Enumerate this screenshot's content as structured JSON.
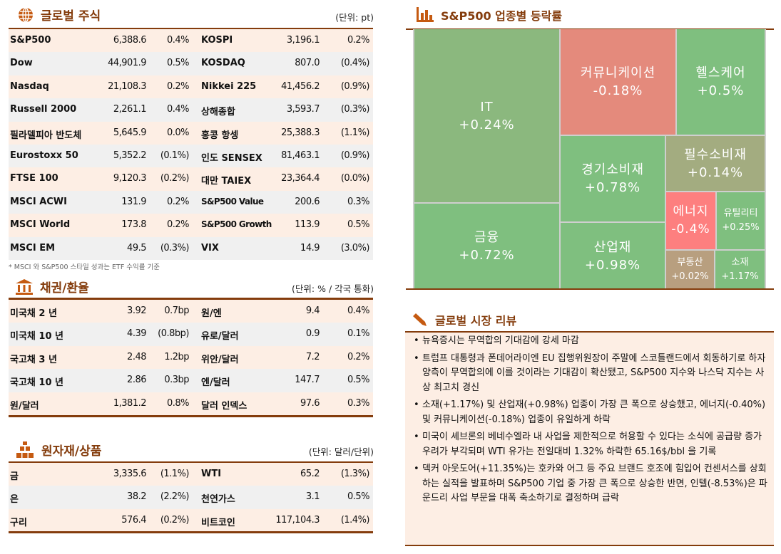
{
  "global_stocks": {
    "title": "글로벌 주식",
    "unit": "(단위: pt)",
    "icon": "globe-icon",
    "rows": [
      [
        "S&P500",
        "6,388.6",
        "0.4%",
        "KOSPI",
        "3,196.1",
        "0.2%"
      ],
      [
        "Dow",
        "44,901.9",
        "0.5%",
        "KOSDAQ",
        "807.0",
        "(0.4%)"
      ],
      [
        "Nasdaq",
        "21,108.3",
        "0.2%",
        "Nikkei 225",
        "41,456.2",
        "(0.9%)"
      ],
      [
        "Russell 2000",
        "2,261.1",
        "0.4%",
        "상해종합",
        "3,593.7",
        "(0.3%)"
      ],
      [
        "필라델피아 반도체",
        "5,645.9",
        "0.0%",
        "홍콩 항셍",
        "25,388.3",
        "(1.1%)"
      ],
      [
        "Eurostoxx 50",
        "5,352.2",
        "(0.1%)",
        "인도 SENSEX",
        "81,463.1",
        "(0.9%)"
      ],
      [
        "FTSE 100",
        "9,120.3",
        "(0.2%)",
        "대만 TAIEX",
        "23,364.4",
        "(0.0%)"
      ],
      [
        "MSCI ACWI",
        "131.9",
        "0.2%",
        "S&P500 Value",
        "200.6",
        "0.3%"
      ],
      [
        "MSCI World",
        "173.8",
        "0.2%",
        "S&P500 Growth",
        "113.9",
        "0.5%"
      ],
      [
        "MSCI EM",
        "49.5",
        "(0.3%)",
        "VIX",
        "14.9",
        "(3.0%)"
      ]
    ],
    "footnote": "* MSCI 와 S&P500 스타일 성과는 ETF 수익률 기준"
  },
  "bonds_fx": {
    "title": "채권/환율",
    "unit": "(단위: % / 각국 통화)",
    "icon": "bank-icon",
    "rows": [
      [
        "미국채 2 년",
        "3.92",
        "0.7bp",
        "원/엔",
        "9.4",
        "0.4%"
      ],
      [
        "미국채 10 년",
        "4.39",
        "(0.8bp)",
        "유로/달러",
        "0.9",
        "0.1%"
      ],
      [
        "국고채 3 년",
        "2.48",
        "1.2bp",
        "위안/달러",
        "7.2",
        "0.2%"
      ],
      [
        "국고채 10 년",
        "2.86",
        "0.3bp",
        "엔/달러",
        "147.7",
        "0.5%"
      ],
      [
        "원/달러",
        "1,381.2",
        "0.8%",
        "달러 인덱스",
        "97.6",
        "0.3%"
      ]
    ]
  },
  "commodities": {
    "title": "원자재/상품",
    "unit": "(단위: 달러/단위)",
    "icon": "gold-bars-icon",
    "rows": [
      [
        "금",
        "3,335.6",
        "(1.1%)",
        "WTI",
        "65.2",
        "(1.3%)"
      ],
      [
        "은",
        "38.2",
        "(2.2%)",
        "천연가스",
        "3.1",
        "0.5%"
      ],
      [
        "구리",
        "576.4",
        "(0.2%)",
        "비트코인",
        "117,104.3",
        "(1.4%)"
      ]
    ]
  },
  "sector_map": {
    "title": "S&P500 업종별 등락률",
    "icon": "bar-chart-icon",
    "cells": [
      {
        "id": "it",
        "name": "IT",
        "value": "+0.24%",
        "color": "#8bb87e"
      },
      {
        "id": "fin",
        "name": "금융",
        "value": "+0.72%",
        "color": "#7fbf7f"
      },
      {
        "id": "comm",
        "name": "커뮤니케이션",
        "value": "-0.18%",
        "color": "#e48a7c"
      },
      {
        "id": "health",
        "name": "헬스케어",
        "value": "+0.5%",
        "color": "#7fbf7f"
      },
      {
        "id": "disc",
        "name": "경기소비재",
        "value": "+0.78%",
        "color": "#7fbf7f"
      },
      {
        "id": "staples",
        "name": "필수소비재",
        "value": "+0.14%",
        "color": "#a3ac80"
      },
      {
        "id": "ind",
        "name": "산업재",
        "value": "+0.98%",
        "color": "#7fbf7f"
      },
      {
        "id": "energy",
        "name": "에너지",
        "value": "-0.4%",
        "color": "#fd7f7f"
      },
      {
        "id": "util",
        "name": "유틸리티",
        "value": "+0.25%",
        "color": "#7fbf7f"
      },
      {
        "id": "re",
        "name": "부동산",
        "value": "+0.02%",
        "color": "#b89f7f"
      },
      {
        "id": "mat",
        "name": "소재",
        "value": "+1.17%",
        "color": "#7fbf7f"
      }
    ]
  },
  "review": {
    "title": "글로벌 시장 리뷰",
    "icon": "pen-icon",
    "items": [
      "뉴욕증시는 무역합의 기대감에 강세 마감",
      "트럼프 대통령과 폰데어라이엔 EU 집행위원장이 주말에 스코틀랜드에서 회동하기로 하자 양측이 무역합의에 이를 것이라는 기대감이 확산됐고, S&P500 지수와 나스닥 지수는 사상 최고치 경신",
      "소재(+1.17%) 및 산업재(+0.98%) 업종이 가장 큰 폭으로 상승했고, 에너지(-0.40%) 및 커뮤니케이션(-0.18%) 업종이 유일하게 하락",
      "미국이 셰브론의 베네수엘라 내 사업을 제한적으로 허용할 수 있다는 소식에 공급량 증가 우려가 부각되며 WTI 유가는 전일대비 1.32% 하락한 65.16$/bbl 을 기록",
      "덱커 아웃도어(+11.35%)는 호카와 어그 등 주요 브랜드 호조에 힘입어 컨센서스를 상회하는 실적을 발표하며 S&P500 기업 중 가장 큰 폭으로 상승한 반면, 인텔(-8.53%)은 파운드리 사업 부문을 대폭 축소하기로 결정하며 급락"
    ]
  },
  "colors": {
    "accent": "#843c0c",
    "icon": "#c55a11",
    "row_a": "#fdeee4",
    "row_b": "#f0f0f0"
  }
}
